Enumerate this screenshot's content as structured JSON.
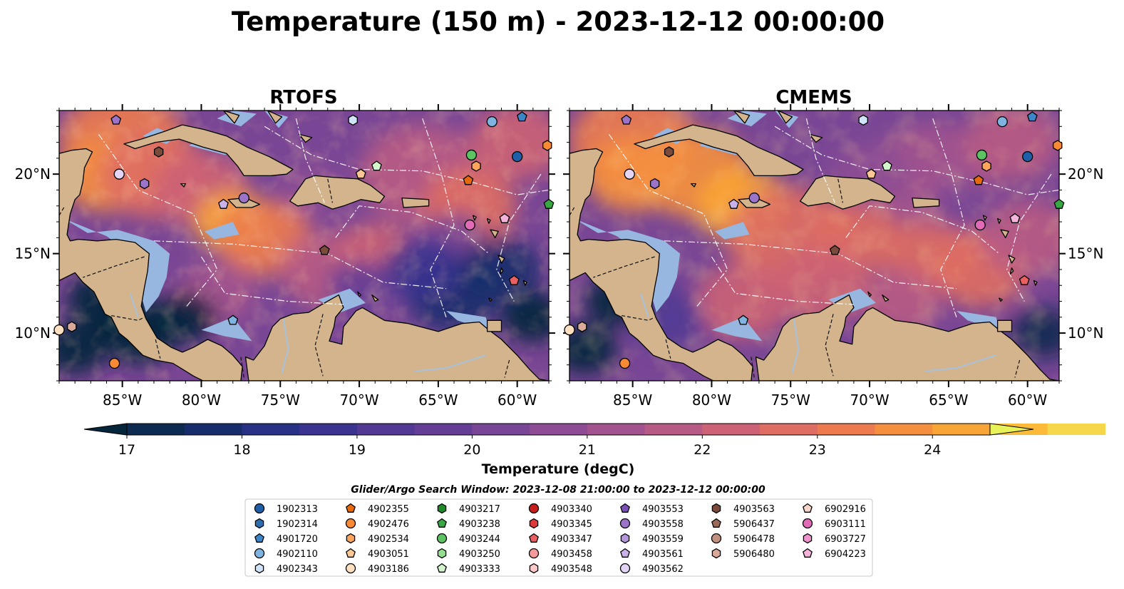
{
  "title": "Temperature (150 m) - 2023-12-12 00:00:00",
  "panels": [
    {
      "title": "RTOFS"
    },
    {
      "title": "CMEMS"
    }
  ],
  "axes": {
    "lon_range": [
      -89,
      -58
    ],
    "lat_range": [
      7,
      24
    ],
    "x_ticks": [
      {
        "value": -85,
        "label": "85°W"
      },
      {
        "value": -80,
        "label": "80°W"
      },
      {
        "value": -75,
        "label": "75°W"
      },
      {
        "value": -70,
        "label": "70°W"
      },
      {
        "value": -65,
        "label": "65°W"
      },
      {
        "value": -60,
        "label": "60°W"
      }
    ],
    "y_ticks": [
      {
        "value": 20,
        "label": "20°N"
      },
      {
        "value": 15,
        "label": "15°N"
      },
      {
        "value": 10,
        "label": "10°N"
      }
    ]
  },
  "colorbar": {
    "label": "Temperature (degC)",
    "min": 16.75,
    "max": 24.5,
    "step": 0.5,
    "extend": "both",
    "ticks": [
      {
        "value": 17,
        "label": "17"
      },
      {
        "value": 18,
        "label": "18"
      },
      {
        "value": 19,
        "label": "19"
      },
      {
        "value": 20,
        "label": "20"
      },
      {
        "value": 21,
        "label": "21"
      },
      {
        "value": 22,
        "label": "22"
      },
      {
        "value": 23,
        "label": "23"
      },
      {
        "value": 24,
        "label": "24"
      }
    ],
    "colors": [
      "#05253a",
      "#0d2a50",
      "#172d6b",
      "#273185",
      "#3a3490",
      "#523a94",
      "#643e96",
      "#794695",
      "#8d4c93",
      "#a2538e",
      "#b85b84",
      "#cc6275",
      "#de6d63",
      "#ec7c4f",
      "#f48f3f",
      "#f9a436",
      "#fbba3a",
      "#f6d64a",
      "#e8f35a"
    ]
  },
  "colors": {
    "land": "#d3b48c",
    "ocean_shallow": "#97b6e0",
    "rivers": "#a9c1dc"
  },
  "legend": {
    "title": "Glider/Argo Search Window: 2023-12-08 21:00:00 to 2023-12-12 00:00:00",
    "columns": [
      [
        {
          "id": "1902313",
          "color": "#1f5fa8",
          "marker": "circle"
        },
        {
          "id": "1902314",
          "color": "#2c6fb0",
          "marker": "hexagon"
        },
        {
          "id": "4901720",
          "color": "#3a86c8",
          "marker": "pentagon"
        },
        {
          "id": "4902110",
          "color": "#7fb3e0",
          "marker": "circle"
        },
        {
          "id": "4902343",
          "color": "#cfe4f7",
          "marker": "hexagon"
        }
      ],
      [
        {
          "id": "4902355",
          "color": "#e8690b",
          "marker": "pentagon"
        },
        {
          "id": "4902476",
          "color": "#f88a34",
          "marker": "circle"
        },
        {
          "id": "4902534",
          "color": "#fba55c",
          "marker": "hexagon"
        },
        {
          "id": "4903051",
          "color": "#fdc894",
          "marker": "pentagon"
        },
        {
          "id": "4903186",
          "color": "#fee0c0",
          "marker": "circle"
        }
      ],
      [
        {
          "id": "4903217",
          "color": "#1e8a2a",
          "marker": "hexagon"
        },
        {
          "id": "4903238",
          "color": "#38a845",
          "marker": "pentagon"
        },
        {
          "id": "4903244",
          "color": "#5cc262",
          "marker": "circle"
        },
        {
          "id": "4903250",
          "color": "#95dd8f",
          "marker": "hexagon"
        },
        {
          "id": "4903333",
          "color": "#d3f5cc",
          "marker": "pentagon"
        }
      ],
      [
        {
          "id": "4903340",
          "color": "#c81d1d",
          "marker": "circle"
        },
        {
          "id": "4903345",
          "color": "#dd3b3b",
          "marker": "hexagon"
        },
        {
          "id": "4903347",
          "color": "#ea5f5f",
          "marker": "pentagon"
        },
        {
          "id": "4903458",
          "color": "#f59a9a",
          "marker": "circle"
        },
        {
          "id": "4903548",
          "color": "#fcc8c8",
          "marker": "hexagon"
        }
      ],
      [
        {
          "id": "4903553",
          "color": "#7b4fb5",
          "marker": "pentagon"
        },
        {
          "id": "4903558",
          "color": "#9b73c9",
          "marker": "circle"
        },
        {
          "id": "4903559",
          "color": "#b497da",
          "marker": "hexagon"
        },
        {
          "id": "4903561",
          "color": "#c9b2e8",
          "marker": "pentagon"
        },
        {
          "id": "4903562",
          "color": "#e4d5f5",
          "marker": "circle"
        }
      ],
      [
        {
          "id": "4903563",
          "color": "#7a4a3a",
          "marker": "hexagon"
        },
        {
          "id": "5906437",
          "color": "#9c6a58",
          "marker": "pentagon"
        },
        {
          "id": "5906478",
          "color": "#c29080",
          "marker": "circle"
        },
        {
          "id": "5906480",
          "color": "#dba999",
          "marker": "hexagon"
        }
      ],
      [
        {
          "id": "6902916",
          "color": "#f7d7cc",
          "marker": "pentagon"
        },
        {
          "id": "6903111",
          "color": "#e26bb8",
          "marker": "circle"
        },
        {
          "id": "6903727",
          "color": "#ef92cd",
          "marker": "hexagon"
        },
        {
          "id": "6904223",
          "color": "#f5b3dc",
          "marker": "pentagon"
        }
      ]
    ]
  },
  "floats": [
    {
      "lon": -85.4,
      "lat": 23.4,
      "color": "#9b73c9",
      "marker": "pentagon"
    },
    {
      "lon": -70.4,
      "lat": 23.4,
      "color": "#cfe4f7",
      "marker": "hexagon"
    },
    {
      "lon": -61.6,
      "lat": 23.3,
      "color": "#7fb3e0",
      "marker": "circle"
    },
    {
      "lon": -59.7,
      "lat": 23.6,
      "color": "#3a86c8",
      "marker": "pentagon"
    },
    {
      "lon": -58.1,
      "lat": 21.8,
      "color": "#f88a34",
      "marker": "hexagon"
    },
    {
      "lon": -82.7,
      "lat": 21.4,
      "color": "#7a4a3a",
      "marker": "hexagon"
    },
    {
      "lon": -62.9,
      "lat": 21.2,
      "color": "#5cc262",
      "marker": "circle"
    },
    {
      "lon": -60.0,
      "lat": 21.1,
      "color": "#1f5fa8",
      "marker": "circle"
    },
    {
      "lon": -62.6,
      "lat": 20.5,
      "color": "#fba55c",
      "marker": "hexagon"
    },
    {
      "lon": -68.9,
      "lat": 20.5,
      "color": "#d3f5cc",
      "marker": "pentagon"
    },
    {
      "lon": -85.2,
      "lat": 20.0,
      "color": "#e4d5f5",
      "marker": "circle"
    },
    {
      "lon": -69.9,
      "lat": 20.0,
      "color": "#fdc894",
      "marker": "pentagon"
    },
    {
      "lon": -63.1,
      "lat": 19.6,
      "color": "#e8690b",
      "marker": "pentagon"
    },
    {
      "lon": -83.6,
      "lat": 19.4,
      "color": "#9b73c9",
      "marker": "hexagon"
    },
    {
      "lon": -77.3,
      "lat": 18.5,
      "color": "#9b73c9",
      "marker": "circle"
    },
    {
      "lon": -78.6,
      "lat": 18.1,
      "color": "#c9b2e8",
      "marker": "pentagon"
    },
    {
      "lon": -58.0,
      "lat": 18.1,
      "color": "#38a845",
      "marker": "pentagon"
    },
    {
      "lon": -60.8,
      "lat": 17.2,
      "color": "#f5b3dc",
      "marker": "pentagon"
    },
    {
      "lon": -63.0,
      "lat": 16.8,
      "color": "#e26bb8",
      "marker": "circle"
    },
    {
      "lon": -72.2,
      "lat": 15.2,
      "color": "#7a4a3a",
      "marker": "pentagon"
    },
    {
      "lon": -60.2,
      "lat": 13.3,
      "color": "#ea5f5f",
      "marker": "pentagon"
    },
    {
      "lon": -78.0,
      "lat": 10.8,
      "color": "#7fb3e0",
      "marker": "pentagon"
    },
    {
      "lon": -89.0,
      "lat": 10.2,
      "color": "#fee0c0",
      "marker": "circle"
    },
    {
      "lon": -88.2,
      "lat": 10.4,
      "color": "#dba999",
      "marker": "hexagon"
    },
    {
      "lon": -85.5,
      "lat": 8.1,
      "color": "#f88a34",
      "marker": "circle"
    }
  ]
}
